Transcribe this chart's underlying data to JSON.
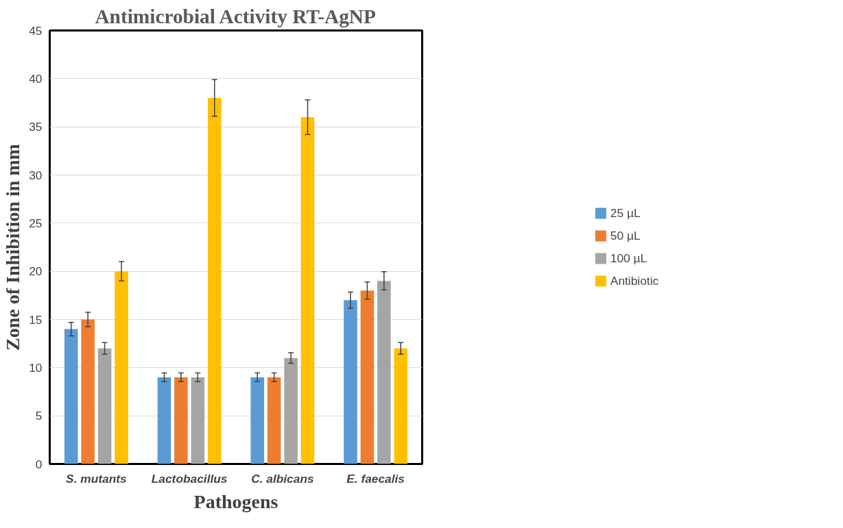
{
  "chart_data": {
    "type": "bar",
    "title": "Antimicrobial Activity RT-AgNP",
    "xlabel": "Pathogens",
    "ylabel": "Zone of Inhibition in mm",
    "categories": [
      "S. mutants",
      "Lactobacillus",
      "C. albicans",
      "E. faecalis"
    ],
    "series": [
      {
        "name": "25 µL",
        "color": "#5b9bd5",
        "values": [
          14,
          9,
          9,
          17
        ],
        "errors": [
          0.7,
          0.45,
          0.45,
          0.85
        ]
      },
      {
        "name": "50 µL",
        "color": "#ed7d31",
        "values": [
          15,
          9,
          9,
          18
        ],
        "errors": [
          0.75,
          0.45,
          0.45,
          0.9
        ]
      },
      {
        "name": "100 µL",
        "color": "#a5a5a5",
        "values": [
          12,
          9,
          11,
          19
        ],
        "errors": [
          0.6,
          0.45,
          0.55,
          0.95
        ]
      },
      {
        "name": "Antibiotic",
        "color": "#ffc000",
        "values": [
          20,
          38,
          36,
          12
        ],
        "errors": [
          1.0,
          1.9,
          1.8,
          0.6
        ]
      }
    ],
    "ylim": [
      0,
      45
    ],
    "yticks": [
      0,
      5,
      10,
      15,
      20,
      25,
      30,
      35,
      40,
      45
    ],
    "grid": "y",
    "legend": "right"
  }
}
